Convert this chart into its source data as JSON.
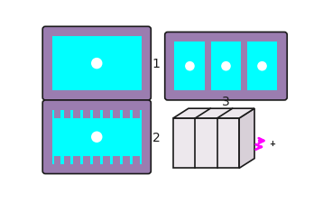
{
  "bg_color": "#ffffff",
  "purple_color": "#9b7db0",
  "cyan_color": "#00ffff",
  "white_color": "#ffffff",
  "dark_color": "#1a1a1a",
  "magenta_color": "#ff00ff",
  "box_face_color": "#ede8ed",
  "box_side_color": "#d8d0d8",
  "label_1": "1",
  "label_2": "2",
  "label_3": "3"
}
